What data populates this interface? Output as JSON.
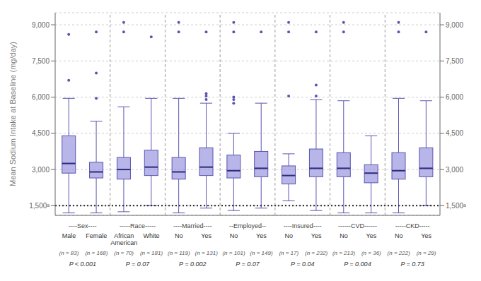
{
  "chart_data": {
    "type": "box",
    "ylabel": "Mean Sodium Intake at Baseline (mg/day)",
    "ylim": [
      1100,
      9500
    ],
    "yticks": [
      {
        "value": 1500,
        "label": "1,500ᵃ"
      },
      {
        "value": 3000,
        "label": "3,000"
      },
      {
        "value": 4500,
        "label": "4,500"
      },
      {
        "value": 6000,
        "label": "6,000"
      },
      {
        "value": 7500,
        "label": "7,500"
      },
      {
        "value": 9000,
        "label": "9,000"
      }
    ],
    "grid": true,
    "reference_line": 1500,
    "groups": [
      {
        "label": "----Sex----",
        "pval": "P < 0.001",
        "boxes": [
          {
            "name": "Male",
            "n": "(n = 83)",
            "whislo": 1200,
            "q1": 2850,
            "med": 3250,
            "q3": 4400,
            "whishi": 5950,
            "fliers": [
              6700,
              8600
            ]
          },
          {
            "name": "Female",
            "n": "(n = 168)",
            "whislo": 1200,
            "q1": 2650,
            "med": 2900,
            "q3": 3300,
            "whishi": 5000,
            "fliers": [
              5950,
              7000,
              8700
            ]
          }
        ]
      },
      {
        "label": "-----Race-----",
        "pval": "P = 0.07",
        "boxes": [
          {
            "name": "African\nAmerican",
            "n": "(n = 70)",
            "whislo": 1250,
            "q1": 2600,
            "med": 3000,
            "q3": 3500,
            "whishi": 5600,
            "fliers": [
              8700,
              9100
            ]
          },
          {
            "name": "White",
            "n": "(n = 181)",
            "whislo": 1500,
            "q1": 2750,
            "med": 3100,
            "q3": 3800,
            "whishi": 5950,
            "fliers": [
              8500
            ]
          }
        ]
      },
      {
        "label": "----Married----",
        "pval": "P = 0.002",
        "boxes": [
          {
            "name": "No",
            "n": "(n = 119)",
            "whislo": 1200,
            "q1": 2600,
            "med": 2900,
            "q3": 3500,
            "whishi": 5950,
            "fliers": [
              8700,
              9100
            ]
          },
          {
            "name": "Yes",
            "n": "(n = 131)",
            "whislo": 1400,
            "q1": 2750,
            "med": 3100,
            "q3": 3900,
            "whishi": 5750,
            "fliers": [
              5900,
              6050,
              6150,
              8700
            ]
          }
        ]
      },
      {
        "label": "--Employed--",
        "pval": "P = 0.07",
        "boxes": [
          {
            "name": "No",
            "n": "(n = 101)",
            "whislo": 1300,
            "q1": 2650,
            "med": 2950,
            "q3": 3600,
            "whishi": 4500,
            "fliers": [
              5750,
              5900,
              6000,
              8700,
              9100
            ]
          },
          {
            "name": "Yes",
            "n": "(n = 149)",
            "whislo": 1400,
            "q1": 2700,
            "med": 3050,
            "q3": 3750,
            "whishi": 5750,
            "fliers": [
              8700
            ]
          }
        ]
      },
      {
        "label": "----Insured----",
        "pval": "P = 0.04",
        "boxes": [
          {
            "name": "No",
            "n": "(n = 17)",
            "whislo": 1700,
            "q1": 2400,
            "med": 2750,
            "q3": 3150,
            "whishi": 3650,
            "fliers": [
              6050,
              8700,
              9100
            ]
          },
          {
            "name": "Yes",
            "n": "(n = 232)",
            "whislo": 1300,
            "q1": 2700,
            "med": 3050,
            "q3": 3850,
            "whishi": 5900,
            "fliers": [
              6050,
              6500,
              8700
            ]
          }
        ]
      },
      {
        "label": "------CVD------",
        "pval": "P = 0.004",
        "boxes": [
          {
            "name": "No",
            "n": "(n = 213)",
            "whislo": 1200,
            "q1": 2700,
            "med": 3050,
            "q3": 3700,
            "whishi": 5850,
            "fliers": [
              8700,
              9100
            ]
          },
          {
            "name": "Yes",
            "n": "(n = 36)",
            "whislo": 1200,
            "q1": 2450,
            "med": 2850,
            "q3": 3200,
            "whishi": 4400,
            "fliers": []
          }
        ]
      },
      {
        "label": "-----CKD-----",
        "pval": "P = 0.73",
        "boxes": [
          {
            "name": "No",
            "n": "(n = 222)",
            "whislo": 1200,
            "q1": 2600,
            "med": 2950,
            "q3": 3700,
            "whishi": 5950,
            "fliers": [
              8700,
              9100
            ]
          },
          {
            "name": "Yes",
            "n": "(n = 29)",
            "whislo": 1500,
            "q1": 2700,
            "med": 3050,
            "q3": 3900,
            "whishi": 5850,
            "fliers": [
              8700
            ]
          }
        ]
      }
    ]
  }
}
